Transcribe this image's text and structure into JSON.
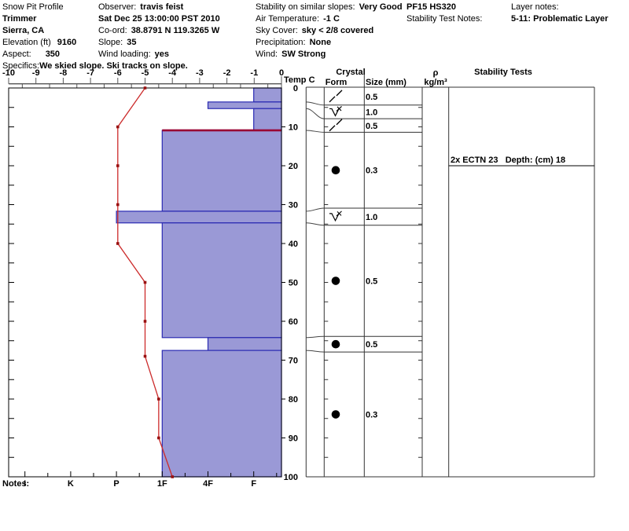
{
  "header": {
    "col1": {
      "title": "Snow Pit Profile",
      "pit_name": "Trimmer",
      "region": "Sierra, CA",
      "elevation_label": "Elevation (ft)",
      "elevation_value": "9160",
      "aspect_label": "Aspect:",
      "aspect_value": "350",
      "specifics_label": "Specifics:",
      "specifics_value": "We skied slope. Ski tracks on slope."
    },
    "col2": {
      "observer_label": "Observer:",
      "observer_value": "travis feist",
      "datetime": "Sat Dec 25 13:00:00 PST 2010",
      "coord_label": "Co-ord:",
      "coord_value": "38.8791 N 119.3265 W",
      "slope_label": "Slope:",
      "slope_value": "35",
      "wind_loading_label": "Wind loading:",
      "wind_loading_value": "yes"
    },
    "col3": {
      "stability_label": "Stability on similar slopes:",
      "stability_value": "Very Good",
      "air_temp_label": "Air Temperature:",
      "air_temp_value": "-1 C",
      "sky_label": "Sky Cover:",
      "sky_value": "sky < 2/8 covered",
      "precip_label": "Precipitation:",
      "precip_value": "None",
      "wind_label": "Wind:",
      "wind_value": "SW Strong"
    },
    "col4": {
      "pit_code": "PF15 HS320",
      "test_notes_label": "Stability Test Notes:"
    },
    "col5": {
      "layer_notes_label": "Layer notes:",
      "layer_notes_value": "5-11: Problematic Layer"
    }
  },
  "panel": {
    "temp_axis_label": "Temp C",
    "crystal_header": "Crystal",
    "form_header": "Form",
    "size_header": "Size (mm)",
    "density_header_1": "ρ",
    "density_header_2": "kg/m³",
    "stability_header": "Stability Tests",
    "notes_label": "Notes:"
  },
  "chart_data": {
    "type": "snow-profile",
    "title": "Snow Pit Profile - Trimmer",
    "temp_axis": {
      "label": "Temp C",
      "range": [
        -10,
        0
      ],
      "ticks": [
        -10,
        -9,
        -8,
        -7,
        -6,
        -5,
        -4,
        -3,
        -2,
        -1,
        0
      ]
    },
    "depth_axis": {
      "unit": "cm",
      "range": [
        0,
        100
      ],
      "ticks": [
        0,
        10,
        20,
        30,
        40,
        50,
        60,
        70,
        80,
        90,
        100
      ]
    },
    "hardness_axis": {
      "categories": [
        "I",
        "K",
        "P",
        "1F",
        "4F",
        "F"
      ]
    },
    "temperature_series": {
      "name": "Snow temperature (C)",
      "points": [
        {
          "depth": 0,
          "temp": -5
        },
        {
          "depth": 10,
          "temp": -6
        },
        {
          "depth": 20,
          "temp": -6
        },
        {
          "depth": 30,
          "temp": -6
        },
        {
          "depth": 40,
          "temp": -6
        },
        {
          "depth": 50,
          "temp": -5
        },
        {
          "depth": 60,
          "temp": -5
        },
        {
          "depth": 69,
          "temp": -5
        },
        {
          "depth": 80,
          "temp": -4.5
        },
        {
          "depth": 90,
          "temp": -4.5
        },
        {
          "depth": 100,
          "temp": -4
        }
      ]
    },
    "layers": [
      {
        "from": 0,
        "to": 3.6,
        "hardness": "F"
      },
      {
        "from": 3.6,
        "to": 5.3,
        "hardness": "4F"
      },
      {
        "from": 5.3,
        "to": 10.9,
        "hardness": "F"
      },
      {
        "from": 10.9,
        "to": 31.7,
        "hardness": "1F",
        "flag": "problematic"
      },
      {
        "from": 31.7,
        "to": 34.7,
        "hardness": "P"
      },
      {
        "from": 34.7,
        "to": 64.2,
        "hardness": "1F"
      },
      {
        "from": 64.2,
        "to": 67.5,
        "hardness": "4F"
      },
      {
        "from": 67.5,
        "to": 100,
        "hardness": "1F"
      }
    ],
    "grain_rows": [
      {
        "from": 0,
        "to": 4.4,
        "form": "decomposing",
        "size_mm": "0.5"
      },
      {
        "from": 4.4,
        "to": 7.9,
        "form": "surface-hoar",
        "size_mm": "1.0"
      },
      {
        "from": 7.9,
        "to": 11.4,
        "form": "decomposing",
        "size_mm": "0.5"
      },
      {
        "from": 11.4,
        "to": 30.9,
        "form": "rounded",
        "size_mm": "0.3"
      },
      {
        "from": 30.9,
        "to": 35.3,
        "form": "surface-hoar",
        "size_mm": "1.0"
      },
      {
        "from": 35.3,
        "to": 63.9,
        "form": "rounded",
        "size_mm": "0.5"
      },
      {
        "from": 63.9,
        "to": 67.9,
        "form": "rounded",
        "size_mm": "0.5"
      },
      {
        "from": 67.9,
        "to": 100,
        "form": "rounded",
        "size_mm": "0.3"
      }
    ],
    "stability_tests": [
      {
        "label": "2x ECTN 23   Depth: (cm) 18",
        "depth_cm": 18,
        "line_depth": 20
      }
    ],
    "colors": {
      "bar_fill": "#9a99d6",
      "bar_border": "#2a2ab2",
      "temp_line": "#cc2b2b",
      "temp_marker": "#991111",
      "problem_line": "#990033",
      "axis": "#555555",
      "grid": "#333333"
    }
  }
}
